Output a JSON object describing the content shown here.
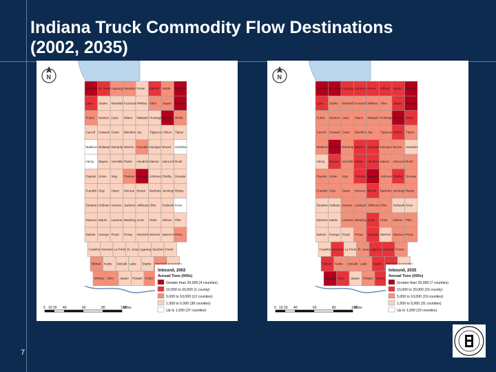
{
  "slide": {
    "title": "Indiana Truck Commodity Flow Destinations\n(2002, 2035)",
    "page_number": "7"
  },
  "colors": {
    "background": "#0d2b4e",
    "rule": "#5a7ea6",
    "dark_red": "#b3001b",
    "red": "#e8333a",
    "salmon": "#f4907a",
    "peach": "#fbd2bf",
    "white": "#ffffff",
    "lake": "#bcd6ee"
  },
  "maps": [
    {
      "legend_title": "Inbound, 2002",
      "legend_subtitle": "Annual Tons (000s)",
      "legend_items": [
        {
          "label": "Greater than 20,000 (4 counties)",
          "color": "#b3001b"
        },
        {
          "label": "10,000 to 20,000 (1 county)",
          "color": "#e8333a"
        },
        {
          "label": "5,000 to 10,000 (12 counties)",
          "color": "#f4907a"
        },
        {
          "label": "1,500 to 5,000 (38 counties)",
          "color": "#fbd2bf"
        },
        {
          "label": "Up to 1,500 (37 counties)",
          "color": "#ffffff"
        }
      ],
      "scale_labels": [
        "0",
        "10",
        "20",
        "40",
        "60",
        "80",
        "100",
        "Miles"
      ]
    },
    {
      "legend_title": "Inbound, 2035",
      "legend_subtitle": "Annual Tons (000s)",
      "legend_items": [
        {
          "label": "Greater than 20,000 (7 counties)",
          "color": "#b3001b"
        },
        {
          "label": "10,000 to 20,000 (15 county)",
          "color": "#e8333a"
        },
        {
          "label": "5,000 to 10,000 (19 counties)",
          "color": "#f4907a"
        },
        {
          "label": "1,500 to 5,000 (31 counties)",
          "color": "#fbd2bf"
        },
        {
          "label": "Up to 1,500 (23 counties)",
          "color": "#ffffff"
        }
      ],
      "scale_labels": [
        "0",
        "10",
        "20",
        "40",
        "60",
        "80",
        "100",
        "Miles"
      ]
    }
  ],
  "county_labels": [
    "La Porte",
    "St. Joseph",
    "Lagrange",
    "Steuben",
    "Porter",
    "Elkhart",
    "Noble",
    "DeKalb",
    "Lake",
    "Starke",
    "Marshall",
    "Kosciusko",
    "Whitley",
    "Allen",
    "Jasper",
    "Pulaski",
    "Fulton",
    "Newton",
    "Cass",
    "Miami",
    "Wabash",
    "Huntington",
    "Benton",
    "White",
    "Carroll",
    "Howard",
    "Grant",
    "Blackford",
    "Jay",
    "Tippecanoe",
    "Clinton",
    "Tipton",
    "Madison",
    "Delaware",
    "Randolph",
    "Warren",
    "Fountain",
    "Montgomery",
    "Boone",
    "Hamilton",
    "Henry",
    "Wayne",
    "Vermillion",
    "Parke",
    "Hendricks",
    "Marion",
    "Hancock",
    "Rush",
    "Fayette",
    "Union",
    "Vigo",
    "Putnam",
    "Morgan",
    "Johnson",
    "Shelby",
    "Decatur",
    "Franklin",
    "Clay",
    "Owen",
    "Monroe",
    "Brown",
    "Bartholomew",
    "Jennings",
    "Ripley",
    "Dearborn",
    "Sullivan",
    "Greene",
    "Jackson",
    "Jefferson",
    "Ohio",
    "Switzerland",
    "Knox",
    "Daviess",
    "Martin",
    "Lawrence",
    "Washington",
    "Scott",
    "Clark",
    "Gibson",
    "Pike",
    "Dubois",
    "Orange",
    "Floyd",
    "Posey",
    "Vanderburgh",
    "Warrick",
    "Spencer",
    "Perry",
    "Crawford",
    "Harrison"
  ]
}
